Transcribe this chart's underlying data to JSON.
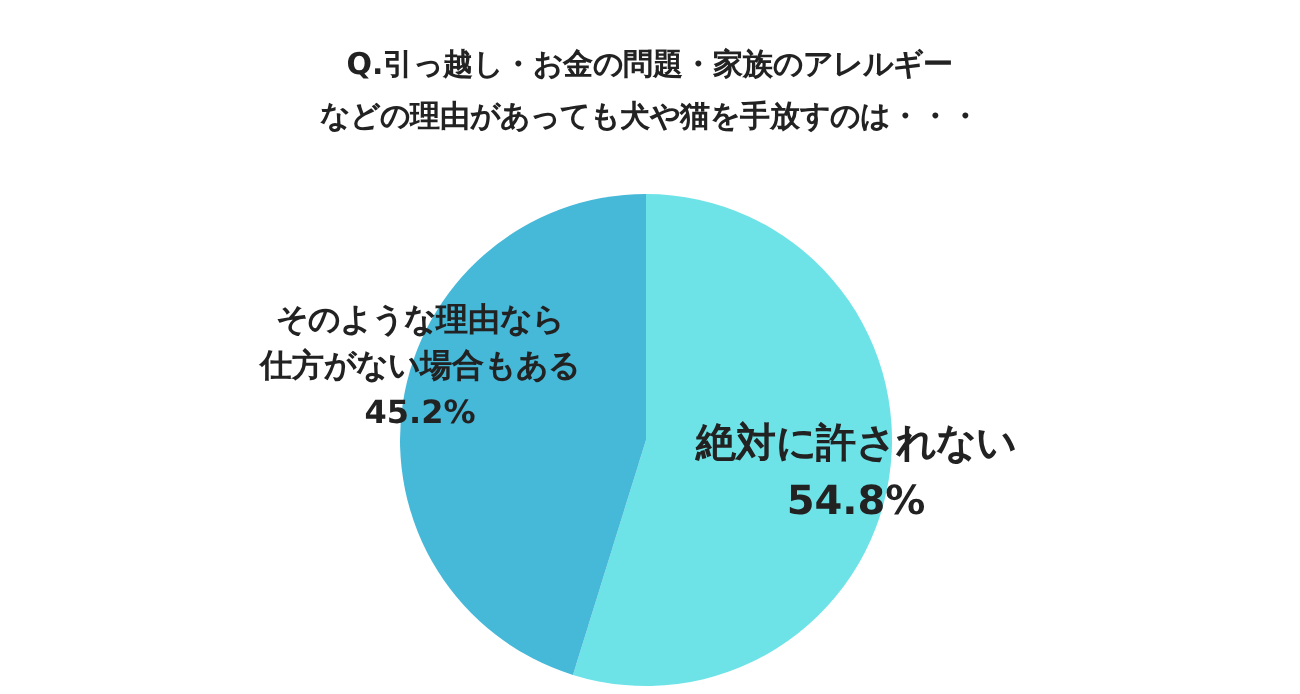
{
  "chart_data": {
    "type": "pie",
    "title": "Q.引っ越し・お金の問題・家族のアレルギーなどの理由があっても犬や猫を手放すのは・・・",
    "categories": [
      "絶対に許されない",
      "そのような理由なら仕方がない場合もある"
    ],
    "values": [
      54.8,
      45.2
    ],
    "value_labels": [
      "54.8%",
      "45.2%"
    ],
    "colors": [
      "#6de3e8",
      "#46b8d8"
    ]
  }
}
